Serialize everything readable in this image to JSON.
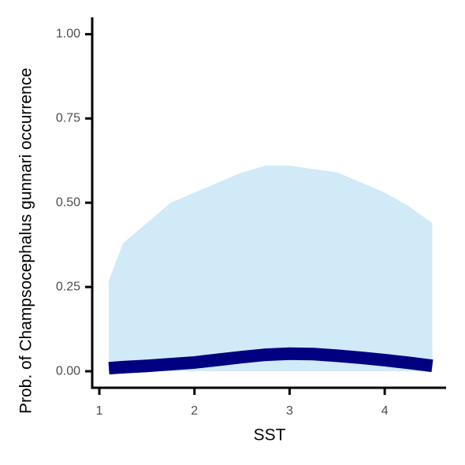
{
  "chart_data": {
    "type": "line",
    "x_label": "SST",
    "y_label": "Prob. of  Champsocephalus gunnari  occurrence",
    "x": [
      1.1,
      1.25,
      1.5,
      1.75,
      2.0,
      2.25,
      2.5,
      2.75,
      3.0,
      3.25,
      3.5,
      3.75,
      4.0,
      4.25,
      4.5
    ],
    "band": {
      "color": "#d0eaf7",
      "upper": [
        0.27,
        0.38,
        0.44,
        0.5,
        0.53,
        0.56,
        0.59,
        0.61,
        0.61,
        0.6,
        0.59,
        0.56,
        0.53,
        0.49,
        0.44
      ],
      "lower": [
        0,
        0,
        0,
        0,
        0,
        0,
        0,
        0,
        0,
        0,
        0,
        0,
        0,
        0,
        0
      ]
    },
    "line": {
      "color": "#000080",
      "values": [
        0.009,
        0.012,
        0.016,
        0.021,
        0.026,
        0.034,
        0.042,
        0.049,
        0.052,
        0.051,
        0.046,
        0.04,
        0.033,
        0.025,
        0.016
      ]
    },
    "xlim": [
      0.925,
      4.645
    ],
    "ylim": [
      -0.049,
      1.05
    ],
    "xticks": [
      1,
      2,
      3,
      4
    ],
    "yticks": [
      {
        "value": 0,
        "label": "0.00"
      },
      {
        "value": 0.25,
        "label": "0.25"
      },
      {
        "value": 0.5,
        "label": "0.50"
      },
      {
        "value": 0.75,
        "label": "0.75"
      },
      {
        "value": 1,
        "label": "1.00"
      }
    ]
  }
}
